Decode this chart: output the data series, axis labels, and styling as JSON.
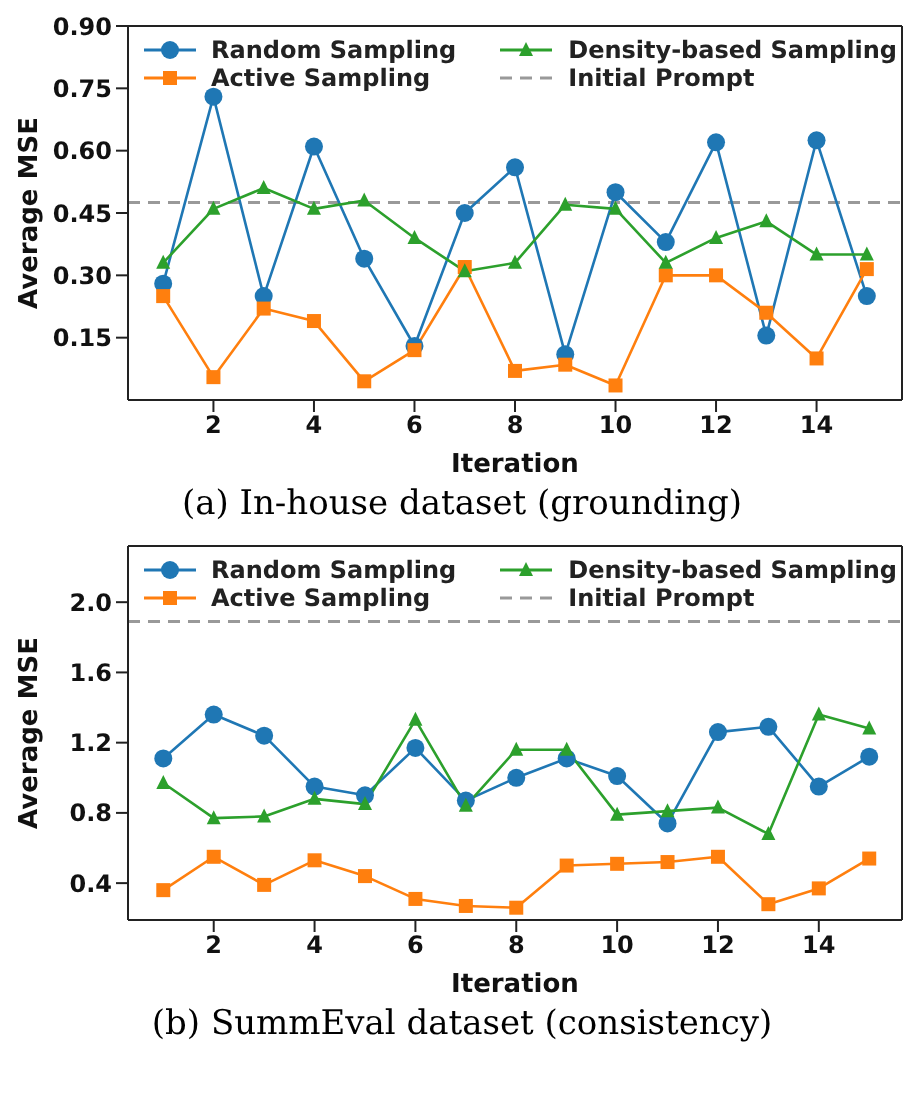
{
  "chart_data": [
    {
      "type": "line",
      "title": "(a) In-house dataset (grounding)",
      "xlabel": "Iteration",
      "ylabel": "Average MSE",
      "x": [
        1,
        2,
        3,
        4,
        5,
        6,
        7,
        8,
        9,
        10,
        11,
        12,
        13,
        14,
        15
      ],
      "xlim": [
        0.3,
        15.7
      ],
      "xticks": [
        2,
        4,
        6,
        8,
        10,
        12,
        14
      ],
      "ylim": [
        0,
        0.9
      ],
      "yticks": [
        0.15,
        {
          "value": 0.3,
          "label": "0.30"
        },
        0.45,
        {
          "value": 0.6,
          "label": "0.60"
        },
        0.75,
        {
          "value": 0.9,
          "label": "0.90"
        }
      ],
      "grid": false,
      "legend": "top",
      "line_style": "solid",
      "series": [
        {
          "name": "Random Sampling",
          "color": "#1f77b4",
          "marker": "circle",
          "values": [
            0.28,
            0.73,
            0.25,
            0.61,
            0.34,
            0.13,
            0.45,
            0.56,
            0.11,
            0.5,
            0.38,
            0.62,
            0.155,
            0.625,
            0.25
          ]
        },
        {
          "name": "Active Sampling",
          "color": "#ff7f0e",
          "marker": "square",
          "values": [
            0.25,
            0.055,
            0.22,
            0.19,
            0.045,
            0.12,
            0.32,
            0.07,
            0.085,
            0.035,
            0.3,
            0.3,
            0.21,
            0.1,
            0.315
          ]
        },
        {
          "name": "Density-based Sampling",
          "color": "#2ca02c",
          "marker": "triangle",
          "values": [
            0.33,
            0.46,
            0.51,
            0.46,
            0.48,
            0.39,
            0.31,
            0.33,
            0.47,
            0.46,
            0.33,
            0.39,
            0.43,
            0.35,
            0.35
          ]
        }
      ],
      "ref_lines": [
        {
          "axis": "y",
          "value": 0.475,
          "label": "Initial Prompt",
          "color": "#999999",
          "line_style": "dashed"
        }
      ]
    },
    {
      "type": "line",
      "title": "(b) SummEval dataset (consistency)",
      "xlabel": "Iteration",
      "ylabel": "Average MSE",
      "x": [
        1,
        2,
        3,
        4,
        5,
        6,
        7,
        8,
        9,
        10,
        11,
        12,
        13,
        14,
        15
      ],
      "xlim": [
        0.3,
        15.65
      ],
      "xticks": [
        2,
        4,
        6,
        8,
        10,
        12,
        14
      ],
      "ylim": [
        0.19,
        2.32
      ],
      "yticks": [
        {
          "value": 0.4,
          "label": "0.4"
        },
        {
          "value": 0.8,
          "label": "0.8"
        },
        {
          "value": 1.2,
          "label": "1.2"
        },
        {
          "value": 1.6,
          "label": "1.6"
        },
        {
          "value": 2,
          "label": "2.0"
        }
      ],
      "grid": false,
      "legend": "top",
      "line_style": "solid",
      "series": [
        {
          "name": "Random Sampling",
          "color": "#1f77b4",
          "marker": "circle",
          "values": [
            1.11,
            1.36,
            1.24,
            0.95,
            0.9,
            1.17,
            0.87,
            1.0,
            1.11,
            1.01,
            0.74,
            1.26,
            1.29,
            0.95,
            1.12
          ]
        },
        {
          "name": "Active Sampling",
          "color": "#ff7f0e",
          "marker": "square",
          "values": [
            0.36,
            0.55,
            0.39,
            0.53,
            0.44,
            0.31,
            0.27,
            0.26,
            0.5,
            0.51,
            0.52,
            0.55,
            0.28,
            0.37,
            0.54
          ]
        },
        {
          "name": "Density-based Sampling",
          "color": "#2ca02c",
          "marker": "triangle",
          "values": [
            0.97,
            0.77,
            0.78,
            0.88,
            0.85,
            1.33,
            0.84,
            1.16,
            1.16,
            0.79,
            0.81,
            0.83,
            0.68,
            1.36,
            1.28
          ]
        }
      ],
      "ref_lines": [
        {
          "axis": "y",
          "value": 1.89,
          "label": "Initial Prompt",
          "color": "#999999",
          "line_style": "dashed"
        }
      ]
    }
  ]
}
